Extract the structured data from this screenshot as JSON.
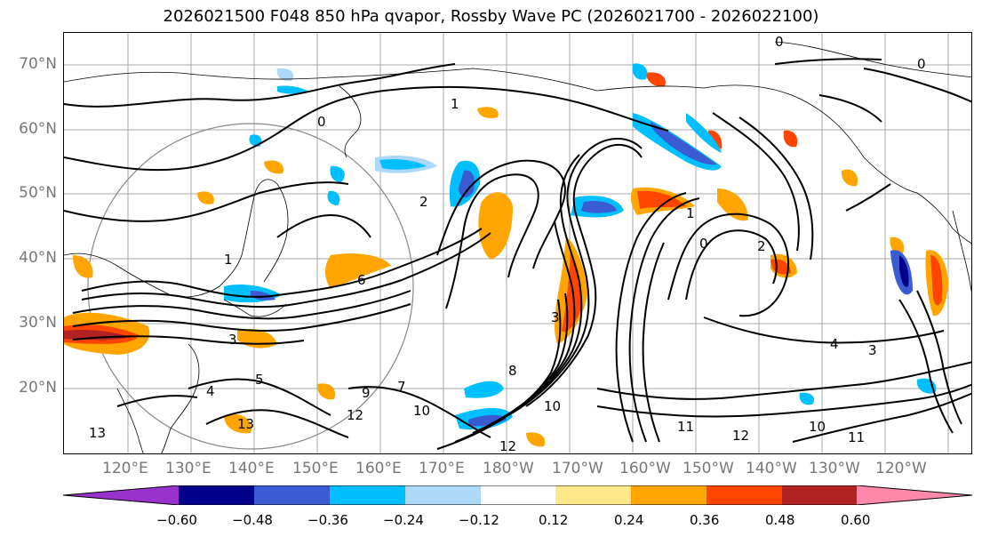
{
  "title": "2026021500 F048 850 hPa qvapor, Rossby Wave PC (2026021700 - 2026022100)",
  "lat_labels": [
    "70°N",
    "60°N",
    "50°N",
    "40°N",
    "30°N",
    "20°N"
  ],
  "lon_labels": [
    "120°E",
    "130°E",
    "140°E",
    "150°E",
    "160°E",
    "170°E",
    "180°W",
    "170°W",
    "160°W",
    "150°W",
    "140°W",
    "130°W",
    "120°W"
  ],
  "colorbar": {
    "colors": [
      "#9932cc",
      "#00008b",
      "#3a5bd2",
      "#00bfff",
      "#add8f8",
      "#ffffff",
      "#ffe88a",
      "#ffa500",
      "#ff4500",
      "#b22222",
      "#ff88aa"
    ],
    "ticks": [
      "−0.60",
      "−0.48",
      "−0.36",
      "−0.24",
      "−0.12",
      "0.12",
      "0.24",
      "0.36",
      "0.48",
      "0.60"
    ]
  },
  "contour_labels": [
    "0",
    "0",
    "0",
    "0",
    "1",
    "1",
    "1",
    "2",
    "2",
    "3",
    "3",
    "3",
    "4",
    "4",
    "5",
    "6",
    "7",
    "8",
    "9",
    "10",
    "10",
    "10",
    "11",
    "11",
    "12",
    "12",
    "13",
    "12",
    "13"
  ]
}
